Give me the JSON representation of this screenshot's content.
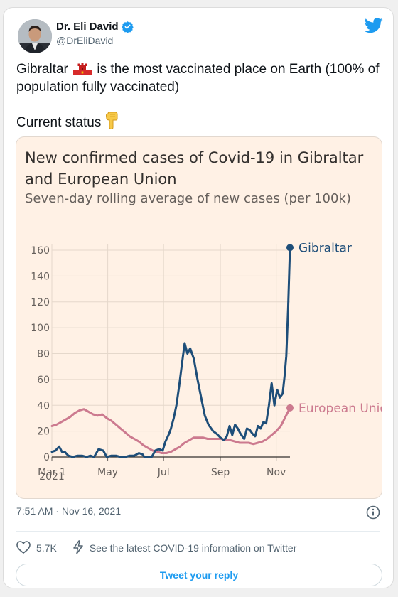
{
  "author": {
    "display_name": "Dr. Eli David",
    "handle": "@DrEliDavid",
    "verified_icon": "verified-badge-icon",
    "avatar_icon": "profile-photo"
  },
  "tweet": {
    "text_before_flag": "Gibraltar ",
    "flag_icon": "gibraltar-flag-icon",
    "text_after_flag": " is the most vaccinated place on Earth (100% of population fully vaccinated)",
    "status_text": "Current status",
    "status_icon": "backhand-pointing-down-emoji"
  },
  "chart": {
    "title": "New confirmed cases of Covid-19 in Gibraltar and European Union",
    "subtitle": "Seven-day rolling average of new cases (per 100k)",
    "y_ticks": [
      "0",
      "20",
      "40",
      "60",
      "80",
      "100",
      "120",
      "140",
      "160"
    ],
    "x_ticks": [
      "Mar 1",
      "May",
      "Jul",
      "Sep",
      "Nov"
    ],
    "x_year": "2021"
  },
  "chart_data": {
    "type": "line",
    "title": "New confirmed cases of Covid-19 in Gibraltar and European Union",
    "subtitle": "Seven-day rolling average of new cases (per 100k)",
    "x_ticks": [
      "Mar 1",
      "May",
      "Jul",
      "Sep",
      "Nov"
    ],
    "ylim": [
      0,
      160
    ],
    "grid": true,
    "legend": "direct labels at end of lines",
    "series": [
      {
        "name": "Gibraltar",
        "color": "#1e4e79",
        "x": [
          "2021-03-01",
          "2021-03-05",
          "2021-03-09",
          "2021-03-12",
          "2021-03-15",
          "2021-03-19",
          "2021-03-24",
          "2021-03-29",
          "2021-04-03",
          "2021-04-08",
          "2021-04-12",
          "2021-04-16",
          "2021-04-21",
          "2021-04-26",
          "2021-04-30",
          "2021-05-05",
          "2021-05-10",
          "2021-05-15",
          "2021-05-20",
          "2021-05-25",
          "2021-05-30",
          "2021-06-04",
          "2021-06-08",
          "2021-06-10",
          "2021-06-14",
          "2021-06-18",
          "2021-06-22",
          "2021-06-26",
          "2021-06-30",
          "2021-07-03",
          "2021-07-07",
          "2021-07-09",
          "2021-07-12",
          "2021-07-15",
          "2021-07-18",
          "2021-07-21",
          "2021-07-24",
          "2021-07-27",
          "2021-07-30",
          "2021-08-03",
          "2021-08-07",
          "2021-08-11",
          "2021-08-15",
          "2021-08-19",
          "2021-08-24",
          "2021-08-28",
          "2021-09-01",
          "2021-09-05",
          "2021-09-08",
          "2021-09-11",
          "2021-09-14",
          "2021-09-17",
          "2021-09-20",
          "2021-09-23",
          "2021-09-27",
          "2021-09-30",
          "2021-10-03",
          "2021-10-06",
          "2021-10-09",
          "2021-10-12",
          "2021-10-15",
          "2021-10-18",
          "2021-10-21",
          "2021-10-24",
          "2021-10-27",
          "2021-10-30",
          "2021-11-02",
          "2021-11-05",
          "2021-11-08",
          "2021-11-10",
          "2021-11-12",
          "2021-11-14",
          "2021-11-16"
        ],
        "values": [
          4,
          5,
          8,
          4,
          4,
          1,
          0,
          1,
          1,
          0,
          1,
          0,
          6,
          5,
          0,
          1,
          1,
          0,
          0,
          1,
          1,
          3,
          2,
          0,
          0,
          0,
          5,
          6,
          5,
          12,
          18,
          22,
          30,
          40,
          55,
          72,
          88,
          80,
          84,
          76,
          60,
          46,
          32,
          25,
          20,
          18,
          15,
          13,
          16,
          24,
          17,
          25,
          22,
          18,
          14,
          22,
          21,
          18,
          16,
          24,
          22,
          27,
          26,
          40,
          57,
          40,
          52,
          46,
          49,
          62,
          78,
          115,
          162
        ]
      },
      {
        "name": "European Union",
        "color": "#cc7a8f",
        "x": [
          "2021-03-01",
          "2021-03-06",
          "2021-03-11",
          "2021-03-16",
          "2021-03-21",
          "2021-03-26",
          "2021-03-31",
          "2021-04-05",
          "2021-04-10",
          "2021-04-15",
          "2021-04-20",
          "2021-04-25",
          "2021-04-30",
          "2021-05-05",
          "2021-05-10",
          "2021-05-15",
          "2021-05-20",
          "2021-05-25",
          "2021-05-30",
          "2021-06-04",
          "2021-06-09",
          "2021-06-14",
          "2021-06-19",
          "2021-06-24",
          "2021-06-29",
          "2021-07-04",
          "2021-07-09",
          "2021-07-14",
          "2021-07-19",
          "2021-07-24",
          "2021-07-29",
          "2021-08-03",
          "2021-08-08",
          "2021-08-13",
          "2021-08-18",
          "2021-08-23",
          "2021-08-28",
          "2021-09-02",
          "2021-09-07",
          "2021-09-12",
          "2021-09-17",
          "2021-09-22",
          "2021-09-27",
          "2021-10-02",
          "2021-10-07",
          "2021-10-12",
          "2021-10-17",
          "2021-10-22",
          "2021-10-27",
          "2021-11-01",
          "2021-11-06",
          "2021-11-11",
          "2021-11-16"
        ],
        "values": [
          24,
          25,
          27,
          29,
          31,
          34,
          36,
          37,
          35,
          33,
          32,
          33,
          30,
          28,
          25,
          22,
          19,
          16,
          14,
          12,
          9,
          7,
          5,
          4,
          3,
          3,
          4,
          6,
          8,
          11,
          13,
          15,
          15,
          15,
          14,
          14,
          14,
          14,
          13,
          13,
          12,
          11,
          11,
          11,
          10,
          11,
          12,
          14,
          17,
          20,
          24,
          31,
          38
        ]
      }
    ]
  }
}
